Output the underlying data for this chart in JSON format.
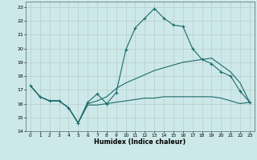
{
  "xlabel": "Humidex (Indice chaleur)",
  "xlim": [
    -0.5,
    23.5
  ],
  "ylim": [
    14,
    23.4
  ],
  "yticks": [
    14,
    15,
    16,
    17,
    18,
    19,
    20,
    21,
    22,
    23
  ],
  "xticks": [
    0,
    1,
    2,
    3,
    4,
    5,
    6,
    7,
    8,
    9,
    10,
    11,
    12,
    13,
    14,
    15,
    16,
    17,
    18,
    19,
    20,
    21,
    22,
    23
  ],
  "bg_color": "#cde8e8",
  "grid_color": "#b8cccc",
  "line_color": "#1a6b6b",
  "line1_x": [
    0,
    1,
    2,
    3,
    4,
    5,
    6,
    7,
    8,
    9,
    10,
    11,
    12,
    13,
    14,
    15,
    16,
    17,
    18,
    19,
    20,
    21,
    22,
    23
  ],
  "line1_y": [
    17.3,
    16.5,
    16.2,
    16.2,
    15.7,
    14.6,
    16.1,
    16.7,
    16.0,
    16.8,
    19.9,
    21.5,
    22.2,
    22.9,
    22.2,
    21.7,
    21.6,
    20.0,
    19.2,
    18.9,
    18.3,
    18.0,
    16.9,
    16.1
  ],
  "line2_x": [
    0,
    1,
    2,
    3,
    4,
    5,
    6,
    7,
    8,
    9,
    10,
    11,
    12,
    13,
    14,
    15,
    16,
    17,
    18,
    19,
    20,
    21,
    22,
    23
  ],
  "line2_y": [
    17.3,
    16.5,
    16.2,
    16.2,
    15.7,
    14.6,
    16.0,
    16.2,
    16.5,
    17.1,
    17.5,
    17.8,
    18.1,
    18.4,
    18.6,
    18.8,
    19.0,
    19.1,
    19.2,
    19.3,
    18.8,
    18.3,
    17.5,
    16.1
  ],
  "line3_x": [
    0,
    1,
    2,
    3,
    4,
    5,
    6,
    7,
    8,
    9,
    10,
    11,
    12,
    13,
    14,
    15,
    16,
    17,
    18,
    19,
    20,
    21,
    22,
    23
  ],
  "line3_y": [
    17.3,
    16.5,
    16.2,
    16.2,
    15.7,
    14.6,
    15.9,
    15.9,
    16.0,
    16.1,
    16.2,
    16.3,
    16.4,
    16.4,
    16.5,
    16.5,
    16.5,
    16.5,
    16.5,
    16.5,
    16.4,
    16.2,
    16.0,
    16.1
  ]
}
